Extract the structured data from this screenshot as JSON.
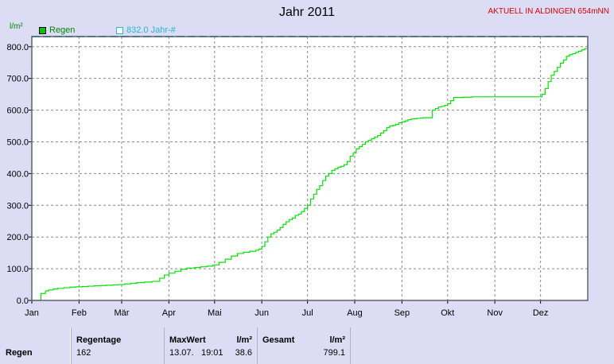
{
  "header": {
    "title": "Jahr 2011",
    "station": "AKTUELL IN ALDINGEN 654mNN",
    "y_unit": "l/m²"
  },
  "legend": {
    "regen_label": "Regen",
    "total_label": "832.0 Jahr-#"
  },
  "colors": {
    "background": "#dcdcf4",
    "plot_bg": "#ffffff",
    "series": "#00e600",
    "reference": "#1cbcc8",
    "station_text": "#e00000"
  },
  "chart_data": {
    "type": "line",
    "title": "Jahr 2011",
    "ylabel": "l/m²",
    "xlabel": "",
    "ylim": [
      0,
      832
    ],
    "yticks": [
      0,
      100,
      200,
      300,
      400,
      500,
      600,
      700,
      800
    ],
    "ytick_labels": [
      "0.0",
      "100.0",
      "200.0",
      "300.0",
      "400.0",
      "500.0",
      "600.0",
      "700.0",
      "800.0"
    ],
    "x_unit": "day of year",
    "xlim": [
      1,
      366
    ],
    "xticks": [
      1,
      32,
      60,
      91,
      121,
      152,
      182,
      213,
      244,
      274,
      305,
      335
    ],
    "xtick_labels": [
      "Jan",
      "Feb",
      "Mär",
      "Apr",
      "Mai",
      "Jun",
      "Jul",
      "Aug",
      "Sep",
      "Okt",
      "Nov",
      "Dez"
    ],
    "grid": true,
    "series": [
      {
        "name": "Regen",
        "step": true,
        "x": [
          1,
          4,
          7,
          10,
          12,
          15,
          18,
          22,
          26,
          30,
          34,
          38,
          42,
          46,
          50,
          54,
          58,
          62,
          66,
          70,
          75,
          80,
          85,
          88,
          91,
          95,
          99,
          103,
          108,
          112,
          116,
          120,
          124,
          128,
          132,
          136,
          140,
          144,
          148,
          150,
          152,
          154,
          156,
          158,
          160,
          162,
          164,
          166,
          168,
          170,
          172,
          174,
          176,
          178,
          180,
          182,
          184,
          186,
          188,
          190,
          192,
          194,
          196,
          198,
          200,
          202,
          204,
          206,
          208,
          210,
          212,
          214,
          216,
          218,
          220,
          222,
          224,
          226,
          228,
          230,
          232,
          234,
          236,
          238,
          240,
          242,
          244,
          246,
          248,
          250,
          252,
          254,
          256,
          258,
          260,
          262,
          264,
          266,
          268,
          270,
          272,
          274,
          276,
          278,
          280,
          282,
          284,
          286,
          288,
          290,
          292,
          294,
          296,
          298,
          300,
          305,
          310,
          315,
          320,
          325,
          330,
          334,
          336,
          338,
          340,
          342,
          344,
          346,
          348,
          350,
          352,
          354,
          356,
          358,
          360,
          362,
          364,
          365
        ],
        "values": [
          0,
          0,
          22,
          30,
          33,
          36,
          38,
          40,
          42,
          43,
          44,
          45,
          46,
          47,
          48,
          49,
          50,
          52,
          54,
          56,
          58,
          60,
          70,
          80,
          86,
          92,
          98,
          102,
          104,
          106,
          108,
          112,
          120,
          130,
          140,
          148,
          152,
          155,
          158,
          162,
          170,
          185,
          200,
          210,
          215,
          222,
          230,
          240,
          248,
          255,
          260,
          268,
          272,
          280,
          290,
          300,
          320,
          335,
          350,
          362,
          378,
          392,
          400,
          410,
          415,
          420,
          423,
          428,
          438,
          455,
          465,
          478,
          485,
          492,
          500,
          505,
          510,
          515,
          520,
          528,
          535,
          545,
          550,
          552,
          555,
          560,
          563,
          566,
          570,
          572,
          573,
          574,
          575,
          576,
          576,
          576,
          600,
          605,
          610,
          612,
          615,
          620,
          630,
          640,
          640,
          640,
          641,
          641,
          641,
          642,
          642,
          642,
          642,
          642,
          642,
          642,
          642,
          642,
          642,
          642,
          642,
          642,
          650,
          668,
          690,
          710,
          722,
          735,
          748,
          758,
          770,
          775,
          778,
          782,
          786,
          790,
          794,
          796
        ]
      }
    ],
    "reference_line": {
      "name": "832.0 Jahr-#",
      "value": 832.0
    }
  },
  "summary": {
    "row_label": "Regen",
    "regentage": {
      "header": "Regentage",
      "value": "162"
    },
    "maxwert": {
      "header": "MaxWert",
      "unit": "l/m²",
      "date": "13.07.",
      "time": "19:01",
      "value": "38.6"
    },
    "gesamt": {
      "header": "Gesamt",
      "unit": "l/m²",
      "value": "799.1"
    }
  }
}
